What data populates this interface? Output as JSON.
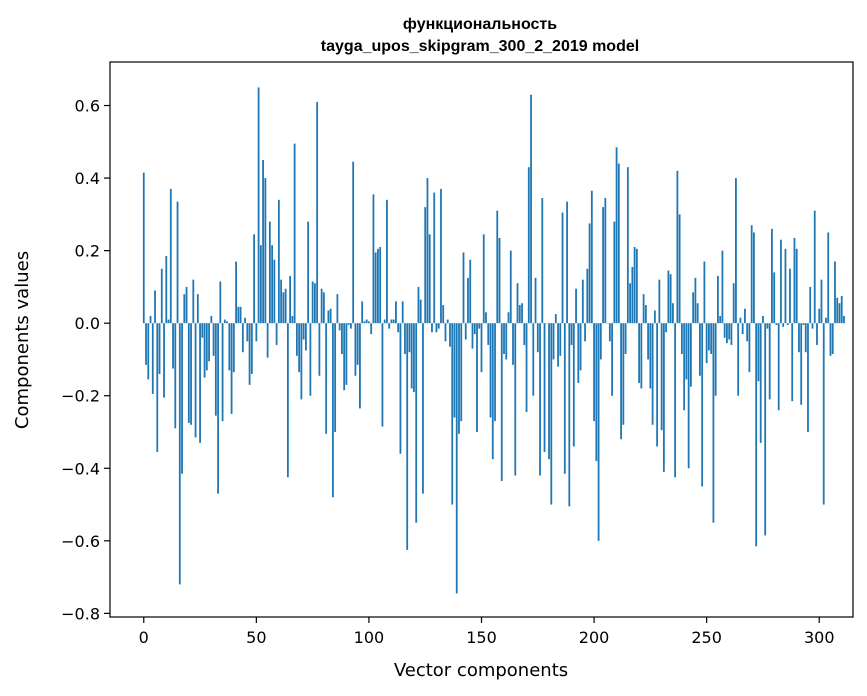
{
  "chart_data": {
    "type": "bar",
    "title_line1": "функциональность",
    "title_line2": "tayga_upos_skipgram_300_2_2019 model",
    "xlabel": "Vector components",
    "ylabel": "Components values",
    "xlim": [
      -15,
      315
    ],
    "ylim": [
      -0.81,
      0.72
    ],
    "xticks": [
      0,
      50,
      100,
      150,
      200,
      250,
      300
    ],
    "xtick_labels": [
      "0",
      "50",
      "100",
      "150",
      "200",
      "250",
      "300"
    ],
    "yticks": [
      -0.8,
      -0.6,
      -0.4,
      -0.2,
      0.0,
      0.2,
      0.4,
      0.6
    ],
    "ytick_labels": [
      "−0.8",
      "−0.6",
      "−0.4",
      "−0.2",
      "0.0",
      "0.2",
      "0.4",
      "0.6"
    ],
    "bar_color": "#1f77b4",
    "values": [
      0.415,
      -0.115,
      -0.155,
      0.02,
      -0.195,
      0.09,
      -0.355,
      -0.14,
      0.15,
      -0.205,
      0.185,
      0.01,
      0.37,
      -0.125,
      -0.29,
      0.335,
      -0.72,
      -0.415,
      0.08,
      0.1,
      -0.275,
      -0.28,
      0.12,
      -0.315,
      0.08,
      -0.33,
      -0.04,
      -0.15,
      -0.13,
      -0.105,
      0.02,
      -0.09,
      -0.255,
      -0.47,
      0.115,
      -0.27,
      0.01,
      0.005,
      -0.13,
      -0.25,
      -0.135,
      0.17,
      0.045,
      0.045,
      -0.08,
      0.015,
      -0.05,
      -0.17,
      -0.14,
      0.245,
      -0.05,
      0.65,
      0.215,
      0.45,
      0.4,
      -0.095,
      0.28,
      0.215,
      0.175,
      -0.06,
      0.34,
      0.12,
      0.085,
      0.095,
      -0.425,
      0.13,
      0.02,
      0.495,
      -0.09,
      -0.135,
      -0.21,
      -0.045,
      -0.075,
      0.28,
      -0.2,
      0.115,
      0.11,
      0.61,
      -0.145,
      0.095,
      0.085,
      -0.305,
      0.035,
      0.04,
      -0.48,
      -0.3,
      0.08,
      -0.02,
      -0.085,
      -0.185,
      -0.17,
      -0.005,
      -0.015,
      0.445,
      -0.145,
      -0.115,
      -0.235,
      0.06,
      0.005,
      0.01,
      0.005,
      -0.03,
      0.355,
      0.195,
      0.205,
      0.21,
      -0.285,
      0.01,
      0.34,
      -0.015,
      0.01,
      0.01,
      0.06,
      -0.025,
      -0.36,
      0.06,
      -0.085,
      -0.625,
      -0.08,
      -0.18,
      -0.19,
      -0.55,
      0.1,
      0.065,
      -0.47,
      0.32,
      0.4,
      0.245,
      -0.025,
      0.36,
      -0.025,
      -0.015,
      0.37,
      0.05,
      -0.05,
      0.01,
      -0.065,
      -0.5,
      -0.26,
      -0.745,
      -0.305,
      -0.27,
      0.195,
      -0.045,
      0.125,
      0.175,
      -0.07,
      -0.03,
      -0.3,
      -0.015,
      -0.135,
      0.245,
      0.03,
      -0.06,
      -0.26,
      -0.375,
      -0.27,
      0.31,
      0.235,
      -0.435,
      -0.085,
      -0.1,
      0.03,
      0.2,
      -0.115,
      -0.42,
      0.11,
      0.05,
      0.055,
      -0.06,
      -0.245,
      0.43,
      0.63,
      -0.2,
      0.125,
      -0.08,
      -0.42,
      0.345,
      -0.355,
      0.0,
      -0.375,
      -0.5,
      -0.1,
      0.025,
      -0.12,
      -0.09,
      0.305,
      -0.415,
      0.335,
      -0.505,
      -0.06,
      -0.34,
      0.095,
      -0.165,
      -0.13,
      0.12,
      -0.05,
      0.15,
      0.275,
      0.365,
      -0.27,
      -0.38,
      -0.6,
      -0.1,
      0.32,
      0.345,
      0.0,
      -0.05,
      -0.2,
      0.28,
      0.485,
      0.44,
      -0.32,
      -0.28,
      -0.085,
      0.43,
      0.11,
      0.155,
      0.21,
      0.205,
      -0.165,
      -0.18,
      0.08,
      0.05,
      -0.1,
      -0.18,
      -0.28,
      0.035,
      -0.34,
      0.12,
      -0.295,
      -0.41,
      -0.025,
      0.145,
      0.135,
      0.055,
      -0.425,
      0.42,
      0.3,
      -0.085,
      -0.24,
      -0.155,
      -0.4,
      -0.175,
      0.085,
      0.125,
      0.055,
      -0.145,
      -0.45,
      0.17,
      -0.11,
      -0.075,
      -0.085,
      -0.55,
      -0.2,
      0.13,
      0.02,
      0.2,
      -0.04,
      -0.055,
      -0.045,
      -0.06,
      0.11,
      0.4,
      -0.2,
      0.015,
      -0.03,
      0.04,
      -0.05,
      -0.135,
      0.27,
      0.25,
      -0.615,
      -0.16,
      -0.33,
      0.02,
      -0.585,
      -0.015,
      -0.21,
      0.26,
      0.14,
      -0.005,
      -0.24,
      0.23,
      -0.01,
      0.205,
      -0.005,
      0.15,
      -0.215,
      0.235,
      0.205,
      -0.08,
      -0.225,
      -0.005,
      -0.08,
      -0.3,
      0.1,
      -0.015,
      0.31,
      -0.06,
      0.04,
      0.12,
      -0.5,
      0.015,
      0.25,
      -0.09,
      -0.085,
      0.17,
      0.07,
      0.055,
      0.075,
      0.02
    ]
  }
}
